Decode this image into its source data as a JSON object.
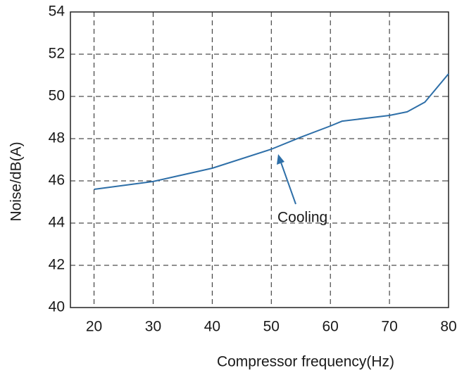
{
  "chart_data": {
    "type": "line",
    "x_label": "Compressor frequency(Hz)",
    "y_label": "Noise/dB(A)",
    "x": [
      20,
      30,
      40,
      50,
      55,
      60,
      62,
      70,
      73,
      76,
      80
    ],
    "series": [
      {
        "name": "Cooling",
        "color": "#2e6fa8",
        "values": [
          45.6,
          45.97,
          46.6,
          47.5,
          48.07,
          48.6,
          48.83,
          49.1,
          49.27,
          49.73,
          51.07
        ]
      }
    ],
    "xlim": [
      16,
      80
    ],
    "xticks": [
      20,
      30,
      40,
      50,
      60,
      70,
      80
    ],
    "ylim": [
      40,
      54
    ],
    "yticks": [
      40,
      42,
      44,
      46,
      48,
      50,
      52,
      54
    ],
    "grid": true
  }
}
